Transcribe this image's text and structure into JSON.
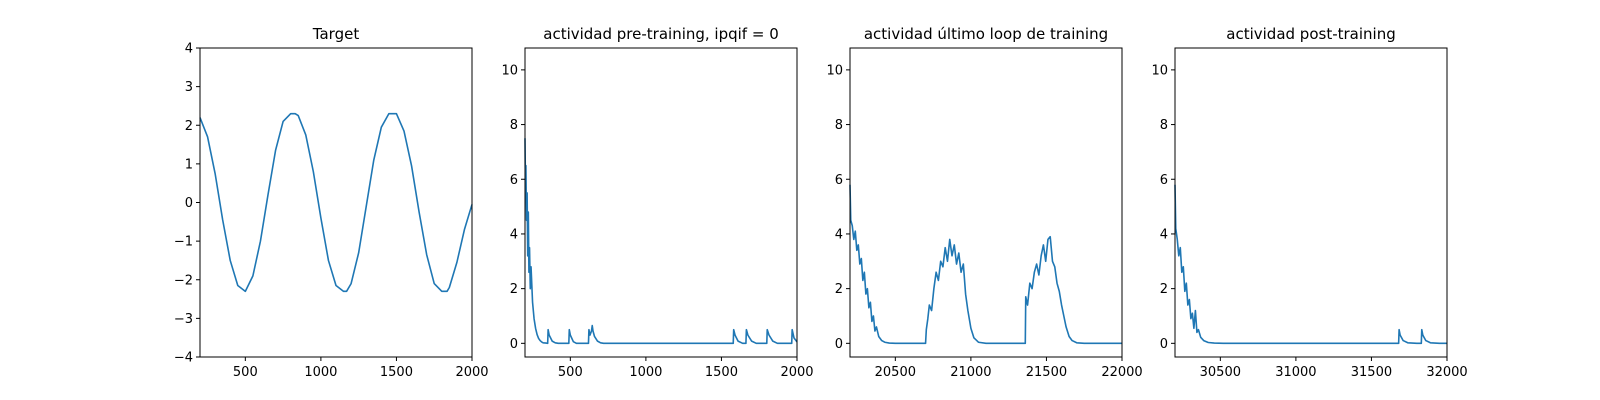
{
  "chart_data": [
    {
      "type": "line",
      "title": "Target",
      "xlim": [
        200,
        2000
      ],
      "ylim": [
        -4,
        4
      ],
      "xticks": [
        500,
        1000,
        1500,
        2000
      ],
      "yticks": [
        -4,
        -3,
        -2,
        -1,
        0,
        1,
        2,
        3,
        4
      ],
      "xtick_labels": [
        "500",
        "1000",
        "1500",
        "2000"
      ],
      "ytick_labels": [
        "−4",
        "−3",
        "−2",
        "−1",
        "0",
        "1",
        "2",
        "3",
        "4"
      ],
      "series": [
        {
          "x": [
            200,
            250,
            300,
            350,
            400,
            450,
            500,
            550,
            600,
            650,
            700,
            750,
            800,
            830,
            850,
            900,
            950,
            1000,
            1050,
            1100,
            1150,
            1170,
            1200,
            1250,
            1300,
            1350,
            1400,
            1450,
            1500,
            1550,
            1600,
            1650,
            1700,
            1750,
            1800,
            1835,
            1850,
            1900,
            1950,
            2000
          ],
          "y": [
            2.2,
            1.7,
            0.75,
            -0.45,
            -1.5,
            -2.15,
            -2.3,
            -1.9,
            -1.0,
            0.2,
            1.35,
            2.1,
            2.3,
            2.3,
            2.25,
            1.75,
            0.8,
            -0.4,
            -1.5,
            -2.15,
            -2.3,
            -2.3,
            -2.1,
            -1.3,
            -0.1,
            1.1,
            1.95,
            2.3,
            2.3,
            1.85,
            0.95,
            -0.25,
            -1.35,
            -2.1,
            -2.3,
            -2.3,
            -2.2,
            -1.55,
            -0.7,
            -0.05
          ]
        }
      ]
    },
    {
      "type": "line",
      "title": "actividad pre-training, ipqif = 0",
      "xlim": [
        200,
        2000
      ],
      "ylim": [
        -0.5,
        10.8
      ],
      "xticks": [
        500,
        1000,
        1500,
        2000
      ],
      "yticks": [
        0,
        2,
        4,
        6,
        8,
        10
      ],
      "xtick_labels": [
        "500",
        "1000",
        "1500",
        "2000"
      ],
      "ytick_labels": [
        "0",
        "2",
        "4",
        "6",
        "8",
        "10"
      ],
      "series": [
        {
          "x": [
            200,
            203,
            206,
            210,
            214,
            218,
            222,
            226,
            230,
            235,
            240,
            250,
            260,
            270,
            280,
            290,
            300,
            310,
            320,
            340,
            350,
            353,
            360,
            380,
            400,
            420,
            490,
            493,
            500,
            520,
            540,
            620,
            623,
            630,
            640,
            645,
            650,
            660,
            680,
            700,
            720,
            760,
            1000,
            1300,
            1578,
            1581,
            1590,
            1610,
            1640,
            1662,
            1665,
            1675,
            1700,
            1730,
            1800,
            1803,
            1815,
            1840,
            1870,
            1965,
            1968,
            1980,
            2000
          ],
          "y": [
            7.5,
            5.8,
            6.5,
            4.5,
            5.5,
            3.2,
            4.8,
            2.6,
            3.5,
            2.0,
            2.8,
            1.5,
            0.9,
            0.55,
            0.32,
            0.18,
            0.1,
            0.05,
            0.02,
            0.01,
            0.0,
            0.5,
            0.3,
            0.08,
            0.02,
            0.0,
            0.0,
            0.5,
            0.3,
            0.06,
            0.0,
            0.0,
            0.5,
            0.3,
            0.45,
            0.65,
            0.45,
            0.25,
            0.08,
            0.02,
            0.0,
            0.0,
            0.0,
            0.0,
            0.0,
            0.5,
            0.3,
            0.08,
            0.0,
            0.0,
            0.5,
            0.3,
            0.08,
            0.0,
            0.0,
            0.5,
            0.3,
            0.08,
            0.0,
            0.0,
            0.5,
            0.2,
            0.05
          ]
        }
      ]
    },
    {
      "type": "line",
      "title": "actividad último loop de training",
      "xlim": [
        20200,
        22000
      ],
      "ylim": [
        -0.5,
        10.8
      ],
      "xticks": [
        20500,
        21000,
        21500,
        22000
      ],
      "yticks": [
        0,
        2,
        4,
        6,
        8,
        10
      ],
      "xtick_labels": [
        "20500",
        "21000",
        "21500",
        "22000"
      ],
      "ytick_labels": [
        "0",
        "2",
        "4",
        "6",
        "8",
        "10"
      ],
      "series": [
        {
          "x": [
            20200,
            20205,
            20215,
            20225,
            20235,
            20245,
            20255,
            20265,
            20275,
            20285,
            20295,
            20305,
            20315,
            20325,
            20335,
            20345,
            20355,
            20365,
            20375,
            20390,
            20410,
            20430,
            20460,
            20500,
            20600,
            20700,
            20705,
            20715,
            20725,
            20740,
            20755,
            20770,
            20785,
            20800,
            20815,
            20830,
            20845,
            20860,
            20875,
            20890,
            20905,
            20920,
            20935,
            20950,
            20965,
            20980,
            21000,
            21020,
            21050,
            21100,
            21200,
            21300,
            21360,
            21363,
            21375,
            21390,
            21405,
            21420,
            21435,
            21450,
            21465,
            21480,
            21495,
            21510,
            21525,
            21540,
            21555,
            21570,
            21585,
            21600,
            21615,
            21630,
            21650,
            21670,
            21700,
            21750,
            21850,
            22000
          ],
          "y": [
            5.8,
            4.5,
            4.3,
            3.8,
            4.1,
            3.4,
            3.6,
            2.9,
            3.1,
            2.3,
            2.6,
            1.8,
            2.0,
            1.3,
            1.5,
            0.8,
            1.0,
            0.45,
            0.6,
            0.25,
            0.1,
            0.04,
            0.01,
            0.0,
            0.0,
            0.0,
            0.5,
            0.9,
            1.4,
            1.2,
            2.0,
            2.6,
            2.3,
            3.0,
            2.8,
            3.5,
            3.0,
            3.8,
            3.2,
            3.6,
            2.9,
            3.3,
            2.6,
            2.9,
            1.8,
            1.2,
            0.55,
            0.2,
            0.04,
            0.0,
            0.0,
            0.0,
            0.0,
            1.7,
            1.4,
            2.2,
            2.0,
            2.6,
            2.9,
            2.5,
            3.2,
            3.6,
            3.0,
            3.8,
            3.9,
            3.0,
            2.8,
            2.2,
            1.9,
            1.4,
            1.0,
            0.6,
            0.25,
            0.1,
            0.02,
            0.0,
            0.0,
            0.0
          ]
        }
      ]
    },
    {
      "type": "line",
      "title": "actividad post-training",
      "xlim": [
        30200,
        32000
      ],
      "ylim": [
        -0.5,
        10.8
      ],
      "xticks": [
        30500,
        31000,
        31500,
        32000
      ],
      "yticks": [
        0,
        2,
        4,
        6,
        8,
        10
      ],
      "xtick_labels": [
        "30500",
        "31000",
        "31500",
        "32000"
      ],
      "ytick_labels": [
        "0",
        "2",
        "4",
        "6",
        "8",
        "10"
      ],
      "series": [
        {
          "x": [
            30200,
            30205,
            30215,
            30225,
            30235,
            30245,
            30255,
            30265,
            30275,
            30285,
            30295,
            30305,
            30315,
            30325,
            30335,
            30345,
            30355,
            30370,
            30390,
            30420,
            30460,
            30520,
            30700,
            31000,
            31400,
            31680,
            31683,
            31690,
            31710,
            31740,
            31800,
            31830,
            31833,
            31840,
            31860,
            31890,
            31950,
            32000
          ],
          "y": [
            5.8,
            4.2,
            3.8,
            3.2,
            3.5,
            2.6,
            2.8,
            1.9,
            2.2,
            1.4,
            1.6,
            0.9,
            1.1,
            0.55,
            1.2,
            0.4,
            0.5,
            0.22,
            0.1,
            0.03,
            0.01,
            0.0,
            0.0,
            0.0,
            0.0,
            0.0,
            0.5,
            0.3,
            0.1,
            0.02,
            0.0,
            0.0,
            0.5,
            0.3,
            0.1,
            0.02,
            0.0,
            0.0
          ]
        }
      ]
    }
  ]
}
